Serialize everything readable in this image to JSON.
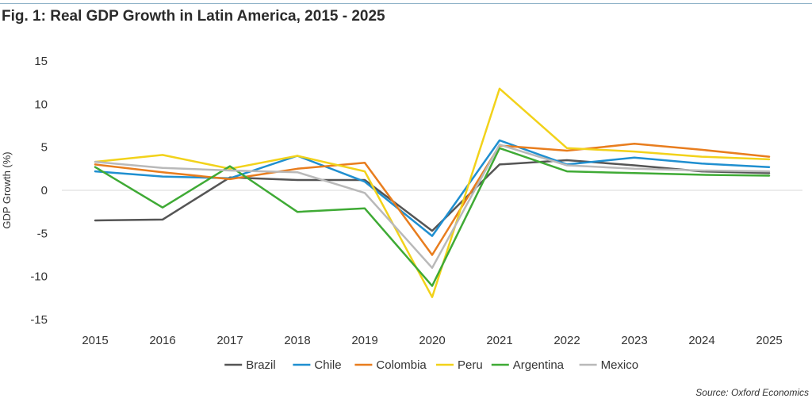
{
  "figure": {
    "title": "Fig. 1: Real GDP Growth in Latin America, 2015 - 2025",
    "source": "Source: Oxford Economics"
  },
  "chart_data": {
    "type": "line",
    "title": "Fig. 1: Real GDP Growth in Latin America, 2015 - 2025",
    "xlabel": "",
    "ylabel": "GDP Growth (%)",
    "ylim": [
      -15,
      15
    ],
    "yticks": [
      15,
      10,
      5,
      0,
      -5,
      -10,
      -15
    ],
    "ytick_labels": [
      "15",
      "10",
      "5",
      "0",
      "-5",
      "-10",
      "-15"
    ],
    "grid": false,
    "legend": "bottom",
    "categories": [
      "2015",
      "2016",
      "2017",
      "2018",
      "2019",
      "2020",
      "2021",
      "2022",
      "2023",
      "2024",
      "2025"
    ],
    "series": [
      {
        "name": "Brazil",
        "color": "#555555",
        "values": [
          -3.5,
          -3.4,
          1.5,
          1.2,
          1.2,
          -4.7,
          3.0,
          3.5,
          2.9,
          2.2,
          2.0
        ]
      },
      {
        "name": "Chile",
        "color": "#1f8fd0",
        "values": [
          2.2,
          1.6,
          1.4,
          4.0,
          1.0,
          -5.3,
          5.8,
          3.0,
          3.8,
          3.1,
          2.7
        ]
      },
      {
        "name": "Colombia",
        "color": "#e87d1e",
        "values": [
          3.0,
          2.1,
          1.3,
          2.5,
          3.2,
          -7.5,
          5.2,
          4.6,
          5.4,
          4.7,
          3.9
        ]
      },
      {
        "name": "Peru",
        "color": "#f2d21a",
        "values": [
          3.3,
          4.1,
          2.5,
          4.0,
          2.2,
          -12.4,
          11.8,
          4.9,
          4.5,
          3.9,
          3.6
        ]
      },
      {
        "name": "Argentina",
        "color": "#3faa35",
        "values": [
          2.7,
          -2.0,
          2.8,
          -2.5,
          -2.1,
          -11.1,
          4.9,
          2.2,
          2.0,
          1.8,
          1.7
        ]
      },
      {
        "name": "Mexico",
        "color": "#b9b9b9",
        "values": [
          3.3,
          2.6,
          2.3,
          2.1,
          -0.3,
          -9.0,
          5.3,
          2.9,
          2.5,
          2.3,
          2.2
        ]
      }
    ]
  }
}
